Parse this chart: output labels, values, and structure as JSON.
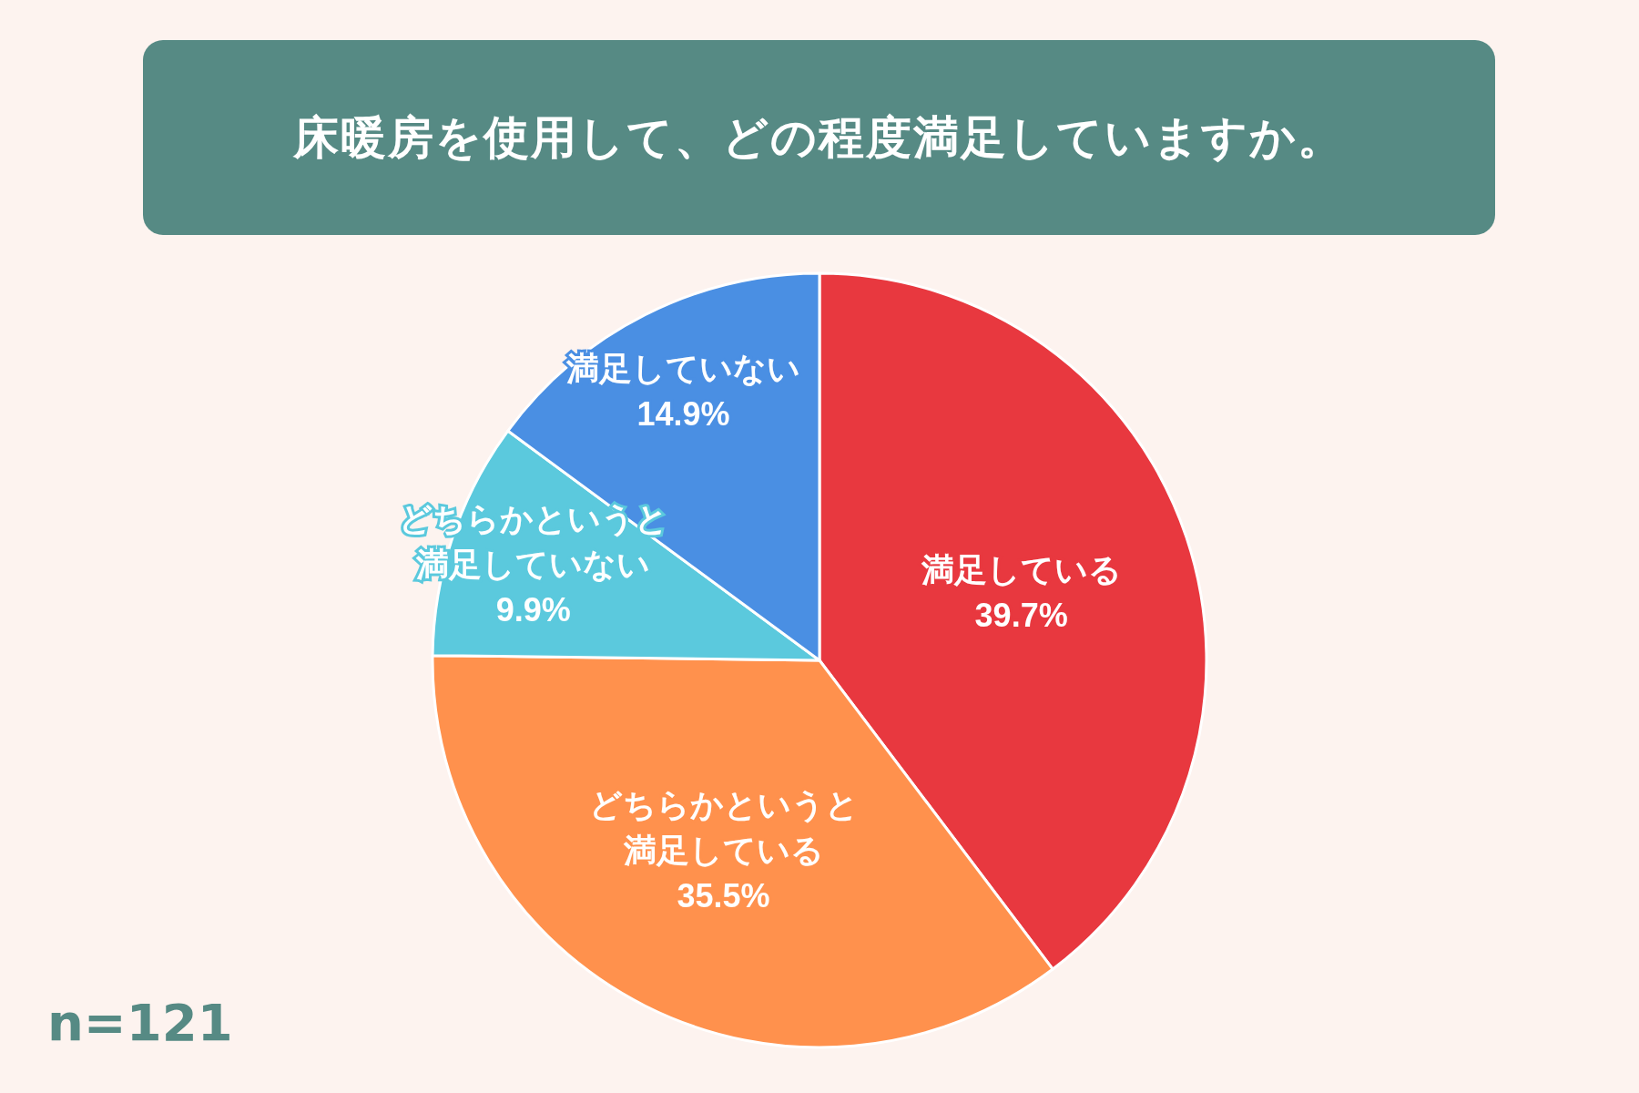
{
  "chart_data": {
    "type": "pie",
    "title": "床暖房を使用して、どの程度満足していますか。",
    "categories": [
      "満足している",
      "どちらかというと満足している",
      "どちらかというと満足していない",
      "満足していない"
    ],
    "values": [
      39.7,
      35.5,
      9.9,
      14.9
    ],
    "value_labels": [
      "39.7%",
      "35.5%",
      "9.9%",
      "14.9%"
    ],
    "colors": [
      "#e8383f",
      "#ff914d",
      "#5bc9dd",
      "#4a8fe3"
    ],
    "annotations": [
      "n=121"
    ]
  }
}
